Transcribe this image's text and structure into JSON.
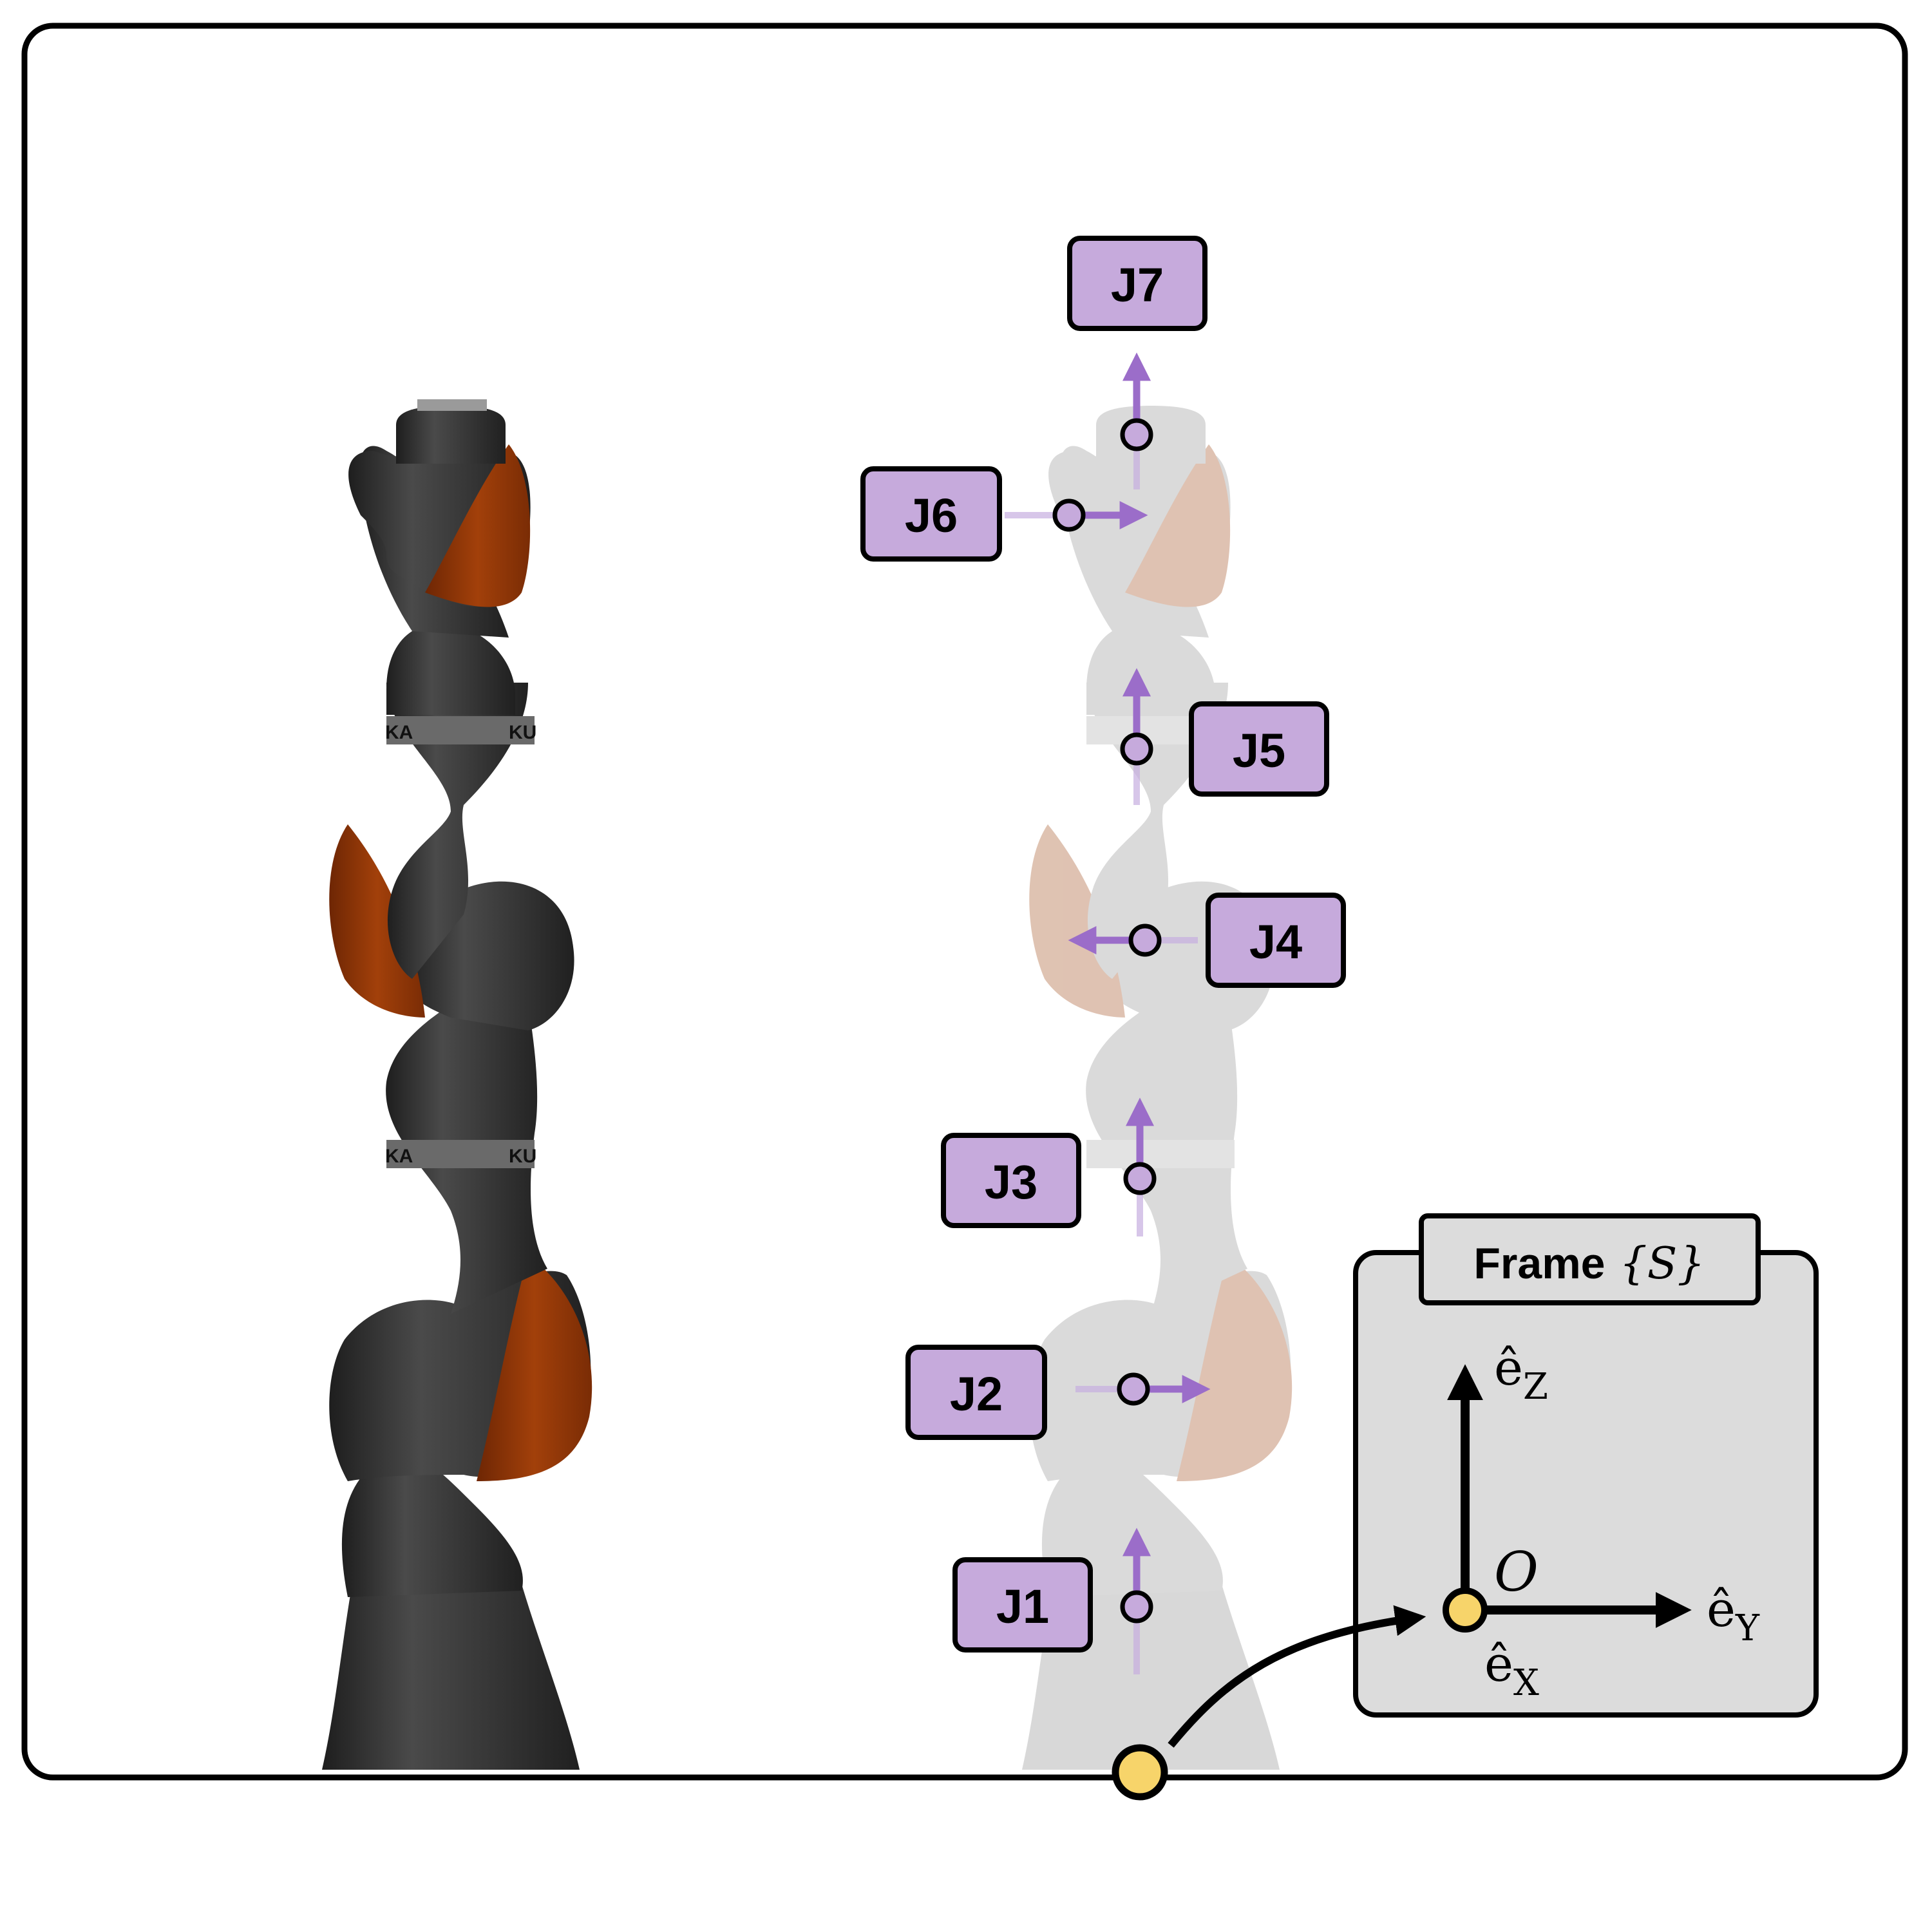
{
  "joints": [
    {
      "id": "J1",
      "label": "J1"
    },
    {
      "id": "J2",
      "label": "J2"
    },
    {
      "id": "J3",
      "label": "J3"
    },
    {
      "id": "J4",
      "label": "J4"
    },
    {
      "id": "J5",
      "label": "J5"
    },
    {
      "id": "J6",
      "label": "J6"
    },
    {
      "id": "J7",
      "label": "J7"
    }
  ],
  "frame": {
    "title_prefix": "Frame",
    "title_symbol": "{S}",
    "origin_label": "O",
    "axis_z_label": "ê",
    "axis_z_sub": "Z",
    "axis_y_label": "ê",
    "axis_y_sub": "Y",
    "axis_x_label": "ê",
    "axis_x_sub": "X"
  },
  "robot_band_text": {
    "left": "KA",
    "right": "KU"
  },
  "colors": {
    "robot_dark": "#3a3a3a",
    "robot_accent": "#9a3a08",
    "ghost_gray": "#d2d2d2",
    "ghost_accent": "#dcb8a4",
    "joint_purple": "#c6aadc",
    "arrow_purple": "#9b6dc9",
    "origin_yellow": "#f7d46a",
    "frame_panel": "#dcdcdc"
  }
}
